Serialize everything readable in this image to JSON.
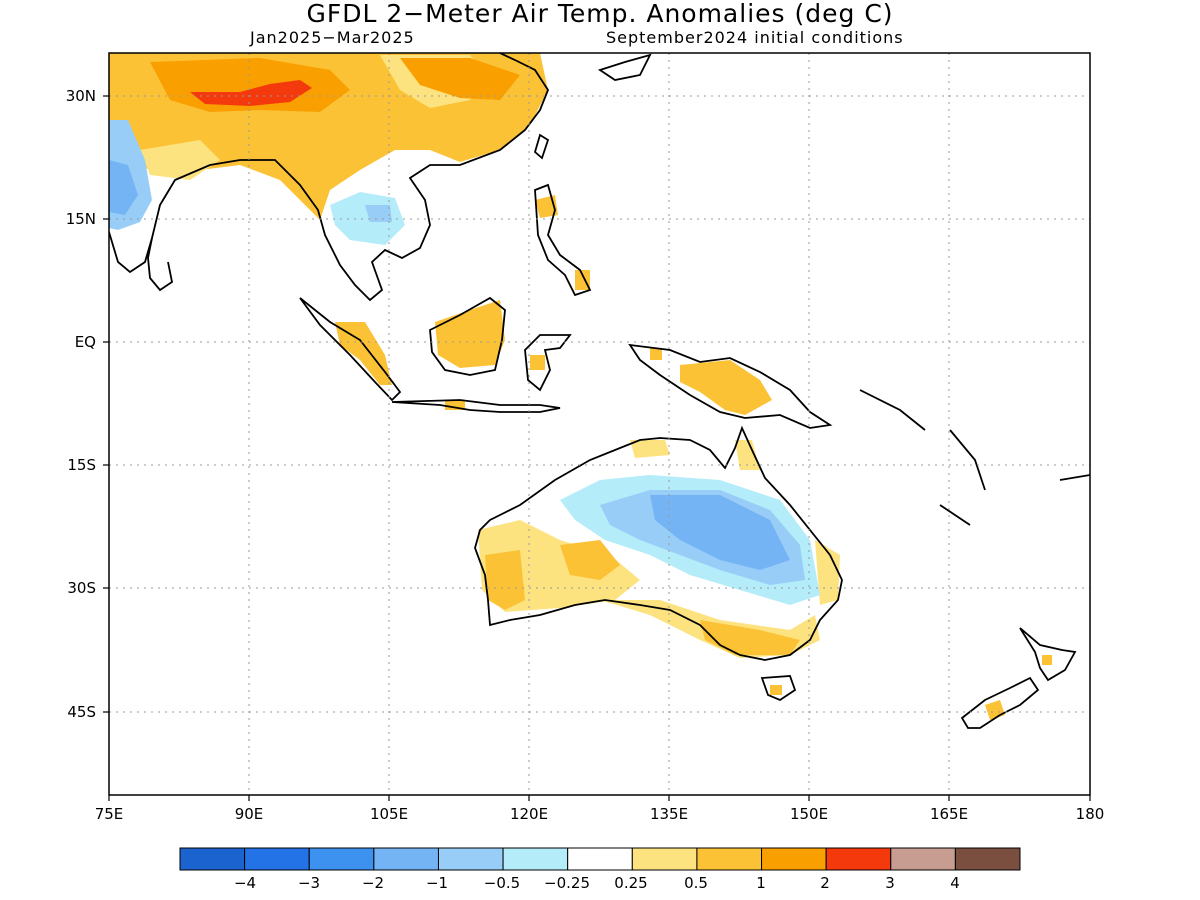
{
  "header": {
    "title": "GFDL 2−Meter Air Temp. Anomalies (deg C)",
    "period": "Jan2025−Mar2025",
    "init": "September2024 initial conditions"
  },
  "map": {
    "lon_range": [
      75,
      180
    ],
    "lat_range": [
      -52,
      35
    ],
    "lat_ticks": [
      {
        "value": 30,
        "label": "30N"
      },
      {
        "value": 15,
        "label": "15N"
      },
      {
        "value": 0,
        "label": "EQ"
      },
      {
        "value": -15,
        "label": "15S"
      },
      {
        "value": -30,
        "label": "30S"
      },
      {
        "value": -45,
        "label": "45S"
      }
    ],
    "lon_ticks": [
      {
        "value": 75,
        "label": "75E"
      },
      {
        "value": 90,
        "label": "90E"
      },
      {
        "value": 105,
        "label": "105E"
      },
      {
        "value": 120,
        "label": "120E"
      },
      {
        "value": 135,
        "label": "135E"
      },
      {
        "value": 150,
        "label": "150E"
      },
      {
        "value": 165,
        "label": "165E"
      },
      {
        "value": 180,
        "label": "180"
      }
    ]
  },
  "colorbar": {
    "colors": [
      "#1b63cf",
      "#2473e6",
      "#3d92f0",
      "#74b4f5",
      "#98cdf7",
      "#b4ecf9",
      "#ffffff",
      "#fde37f",
      "#fbc236",
      "#fa9f00",
      "#f43a0d",
      "#c89d91",
      "#7a4f3f"
    ],
    "labels": [
      "−4",
      "−3",
      "−2",
      "−1",
      "−0.5",
      "−0.25",
      "0.25",
      "0.5",
      "1",
      "2",
      "3",
      "4"
    ]
  }
}
